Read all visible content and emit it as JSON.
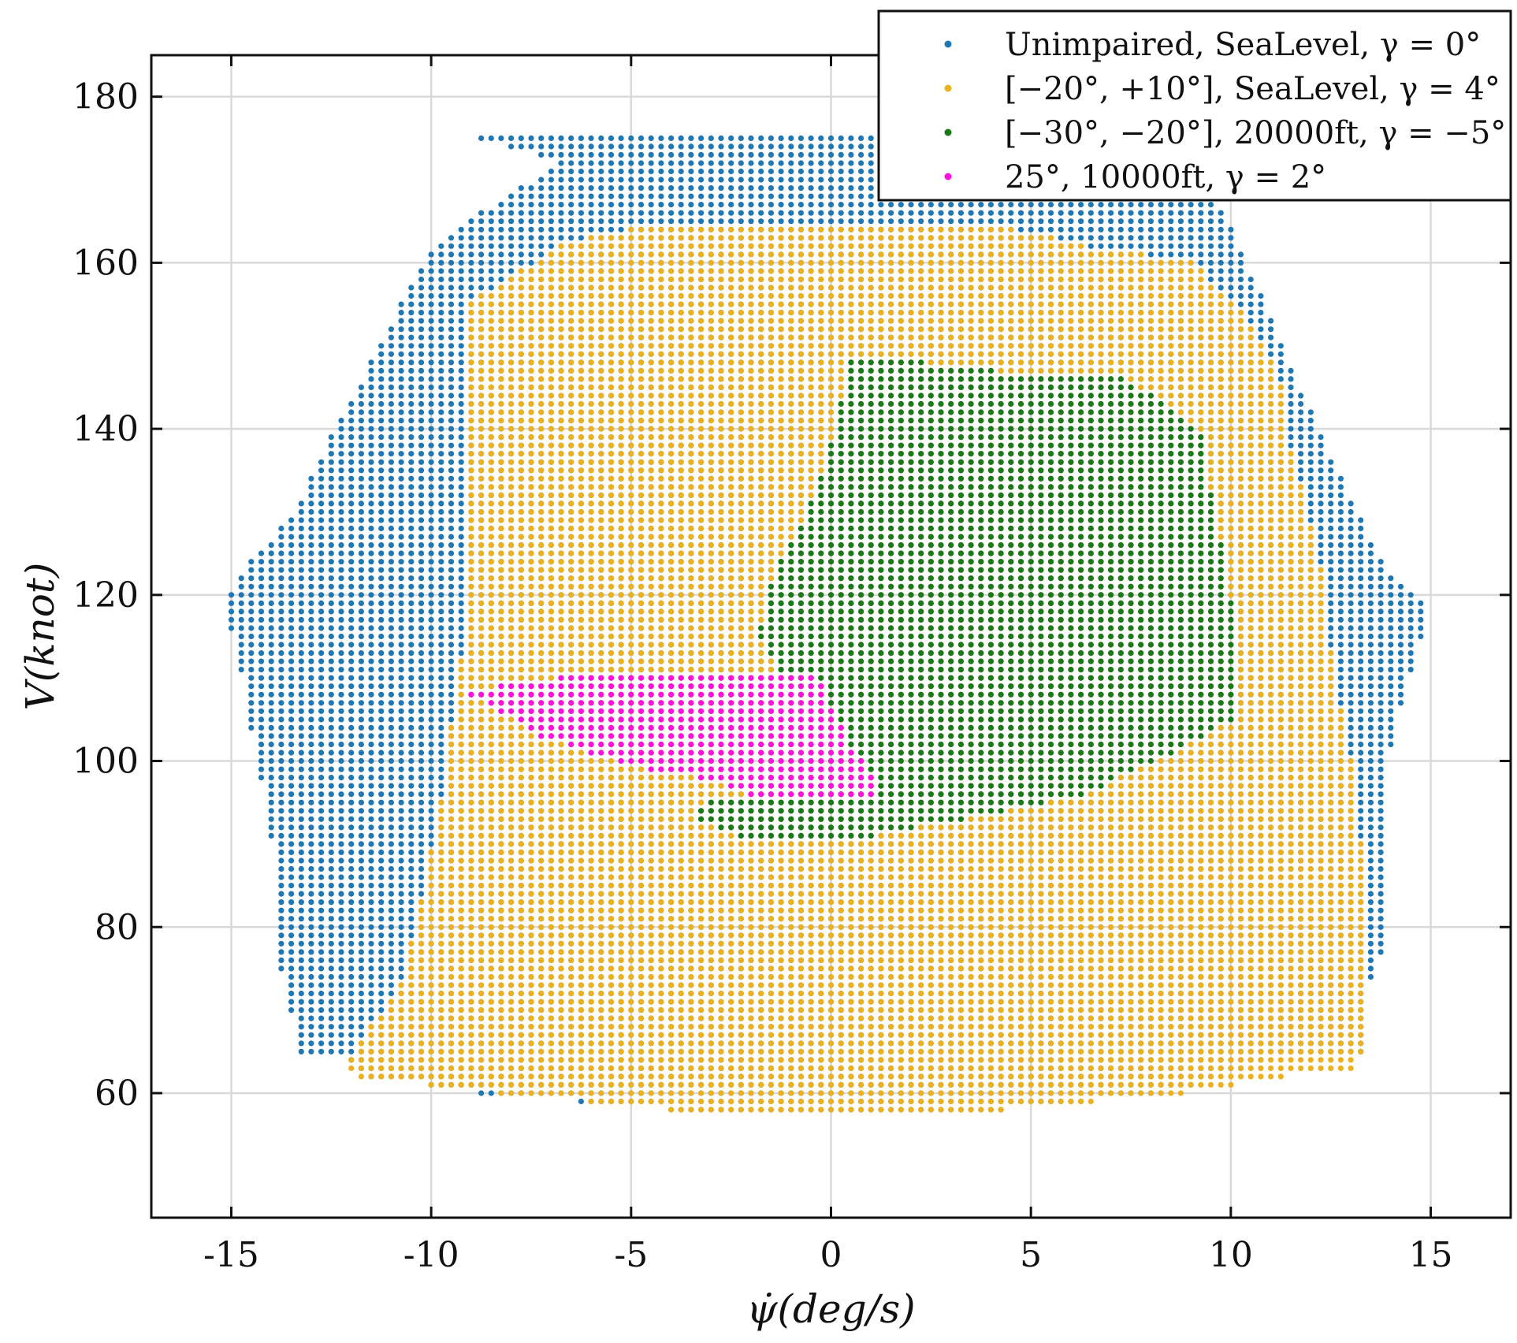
{
  "chart_data": {
    "type": "scatter",
    "xlabel": "ψ̇(deg/s)",
    "ylabel": "V(knot)",
    "xlim": [
      -17,
      17
    ],
    "ylim": [
      45,
      185
    ],
    "xticks": [
      -15,
      -10,
      -5,
      0,
      5,
      10,
      15
    ],
    "yticks": [
      60,
      80,
      100,
      120,
      140,
      160,
      180
    ],
    "xtick_labels": [
      "-15",
      "-10",
      "-5",
      "0",
      "5",
      "10",
      "15"
    ],
    "ytick_labels": [
      "60",
      "80",
      "100",
      "120",
      "140",
      "160",
      "180"
    ],
    "grid": true,
    "legend_position": "top-right",
    "grid_spacing": {
      "x": 0.25,
      "y": 1
    },
    "series": [
      {
        "name": "Unimpaired, SeaLevel, γ = 0°",
        "color": "#1f77b4",
        "boundary": [
          [
            -9.4,
            176
          ],
          [
            1.1,
            176
          ],
          [
            8.6,
            174
          ],
          [
            10.1,
            164
          ],
          [
            10.4,
            160
          ],
          [
            12.2,
            140
          ],
          [
            13.8,
            124
          ],
          [
            15,
            118
          ],
          [
            14.6,
            112
          ],
          [
            14.1,
            104
          ],
          [
            13.8,
            96
          ],
          [
            13.8,
            86
          ],
          [
            14,
            80
          ],
          [
            13.6,
            75
          ],
          [
            13.3,
            70
          ],
          [
            13.3,
            65
          ],
          [
            11,
            64
          ],
          [
            8.4,
            60
          ],
          [
            4.3,
            58
          ],
          [
            -4,
            58
          ],
          [
            -8.8,
            60
          ],
          [
            -11.5,
            62
          ],
          [
            -12.3,
            65
          ],
          [
            -13.3,
            65
          ],
          [
            -13.6,
            72
          ],
          [
            -13.9,
            78
          ],
          [
            -13.9,
            88
          ],
          [
            -14.2,
            96
          ],
          [
            -14.5,
            104
          ],
          [
            -14.8,
            112
          ],
          [
            -15.1,
            118
          ],
          [
            -14.9,
            122
          ],
          [
            -13.4,
            130
          ],
          [
            -12.4,
            140
          ],
          [
            -10.2,
            160
          ],
          [
            -9.4,
            164
          ],
          [
            -6.8,
            172
          ]
        ]
      },
      {
        "name": "[−20°, +10°], SeaLevel, γ = 4°",
        "color": "#edb120",
        "boundary": [
          [
            -9.1,
            155
          ],
          [
            -6.8,
            162
          ],
          [
            -5.2,
            164
          ],
          [
            -2.6,
            165
          ],
          [
            3.6,
            165
          ],
          [
            6.5,
            162
          ],
          [
            9.1,
            160
          ],
          [
            10.5,
            153
          ],
          [
            11.2,
            147
          ],
          [
            11.5,
            138
          ],
          [
            12.2,
            125
          ],
          [
            12.6,
            110
          ],
          [
            13.2,
            96
          ],
          [
            13.3,
            85
          ],
          [
            13.4,
            75
          ],
          [
            13.4,
            67
          ],
          [
            13.2,
            63
          ],
          [
            11.4,
            62
          ],
          [
            8.8,
            60
          ],
          [
            4.3,
            58
          ],
          [
            -4,
            58
          ],
          [
            -8.4,
            60
          ],
          [
            -11.8,
            62
          ],
          [
            -12.2,
            63
          ],
          [
            -11.8,
            66
          ],
          [
            -10.8,
            73
          ],
          [
            -10.2,
            84
          ],
          [
            -9.8,
            94
          ],
          [
            -9.5,
            104
          ],
          [
            -9.2,
            114
          ],
          [
            -9.1,
            128
          ],
          [
            -9.2,
            145
          ]
        ]
      },
      {
        "name": "[−30°, −20°], 20000ft, γ = −5°",
        "color": "#1a7a1a",
        "boundary": [
          [
            0.5,
            149
          ],
          [
            1.2,
            149
          ],
          [
            2.5,
            148
          ],
          [
            3.4,
            148
          ],
          [
            4.2,
            147
          ],
          [
            7.3,
            146
          ],
          [
            8.2,
            144
          ],
          [
            9.3,
            139
          ],
          [
            9.6,
            130
          ],
          [
            10,
            120
          ],
          [
            10.1,
            112
          ],
          [
            10.1,
            105
          ],
          [
            9.3,
            103
          ],
          [
            8.7,
            101
          ],
          [
            7.7,
            99
          ],
          [
            6.3,
            96
          ],
          [
            3.3,
            93
          ],
          [
            1.2,
            91
          ],
          [
            -1.7,
            90
          ],
          [
            -2.8,
            92
          ],
          [
            -3.4,
            93
          ],
          [
            -3,
            96
          ],
          [
            -0.4,
            96
          ],
          [
            0.2,
            102
          ],
          [
            -0.3,
            106
          ],
          [
            -1.2,
            110
          ],
          [
            -1.8,
            115
          ],
          [
            -1.6,
            121
          ],
          [
            -0.6,
            130
          ],
          [
            0,
            138
          ],
          [
            0.4,
            146
          ]
        ]
      },
      {
        "name": "25°, 10000ft, γ = 2°",
        "color": "#ff11dd",
        "boundary": [
          [
            -5.2,
            111
          ],
          [
            -1.7,
            111
          ],
          [
            -0.3,
            110
          ],
          [
            -0.1,
            108
          ],
          [
            0.2,
            105
          ],
          [
            0.6,
            101
          ],
          [
            1.1,
            98
          ],
          [
            1.1,
            96
          ],
          [
            -2.1,
            96
          ],
          [
            -3.3,
            98
          ],
          [
            -4.5,
            99
          ],
          [
            -6,
            101
          ],
          [
            -7.3,
            103
          ],
          [
            -8.3,
            106
          ],
          [
            -9,
            108
          ],
          [
            -8.4,
            109
          ],
          [
            -6.8,
            110
          ]
        ]
      }
    ]
  }
}
